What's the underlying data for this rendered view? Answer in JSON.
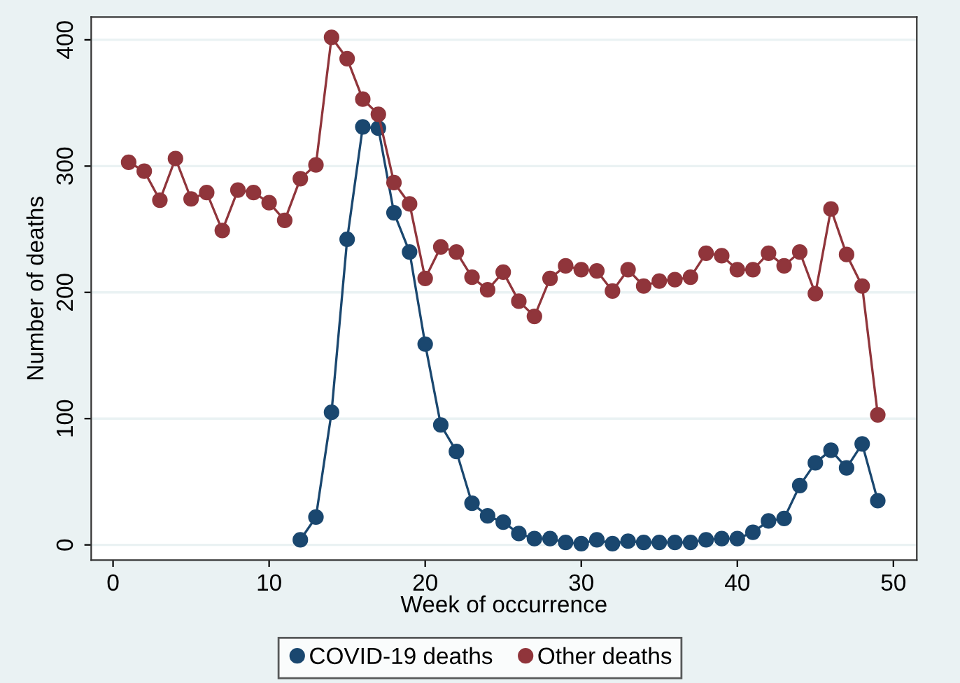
{
  "chart_data": {
    "type": "line",
    "xlabel": "Week of occurrence",
    "ylabel": "Number of deaths",
    "xlim": [
      -1.4,
      51.5
    ],
    "xticks": [
      0,
      10,
      20,
      30,
      40,
      50
    ],
    "ylim": [
      -12,
      418
    ],
    "yticks": [
      0,
      100,
      200,
      300,
      400
    ],
    "grid": "y",
    "legend": "bottom",
    "marker": "circle",
    "line_style": "solid",
    "series": [
      {
        "name": "COVID-19 deaths",
        "color": "#1a476f",
        "x": [
          12,
          13,
          14,
          15,
          16,
          17,
          18,
          19,
          20,
          21,
          22,
          23,
          24,
          25,
          26,
          27,
          28,
          29,
          30,
          31,
          32,
          33,
          34,
          35,
          36,
          37,
          38,
          39,
          40,
          41,
          42,
          43,
          44,
          45,
          46,
          47,
          48,
          49
        ],
        "values": [
          4,
          22,
          105,
          242,
          331,
          330,
          263,
          232,
          159,
          95,
          74,
          33,
          23,
          18,
          9,
          5,
          5,
          2,
          1,
          4,
          1,
          3,
          2,
          2,
          2,
          2,
          4,
          5,
          5,
          10,
          19,
          21,
          47,
          65,
          75,
          61,
          80,
          35
        ]
      },
      {
        "name": "Other deaths",
        "color": "#90353b",
        "x": [
          1,
          2,
          3,
          4,
          5,
          6,
          7,
          8,
          9,
          10,
          11,
          12,
          13,
          14,
          15,
          16,
          17,
          18,
          19,
          20,
          21,
          22,
          23,
          24,
          25,
          26,
          27,
          28,
          29,
          30,
          31,
          32,
          33,
          34,
          35,
          36,
          37,
          38,
          39,
          40,
          41,
          42,
          43,
          44,
          45,
          46,
          47,
          48,
          49
        ],
        "values": [
          303,
          296,
          273,
          306,
          274,
          279,
          249,
          281,
          279,
          271,
          257,
          290,
          301,
          402,
          385,
          353,
          341,
          287,
          270,
          211,
          236,
          232,
          212,
          202,
          216,
          193,
          181,
          211,
          221,
          218,
          217,
          201,
          218,
          205,
          209,
          210,
          212,
          231,
          229,
          218,
          218,
          231,
          221,
          232,
          199,
          266,
          230,
          205,
          103
        ]
      }
    ]
  }
}
